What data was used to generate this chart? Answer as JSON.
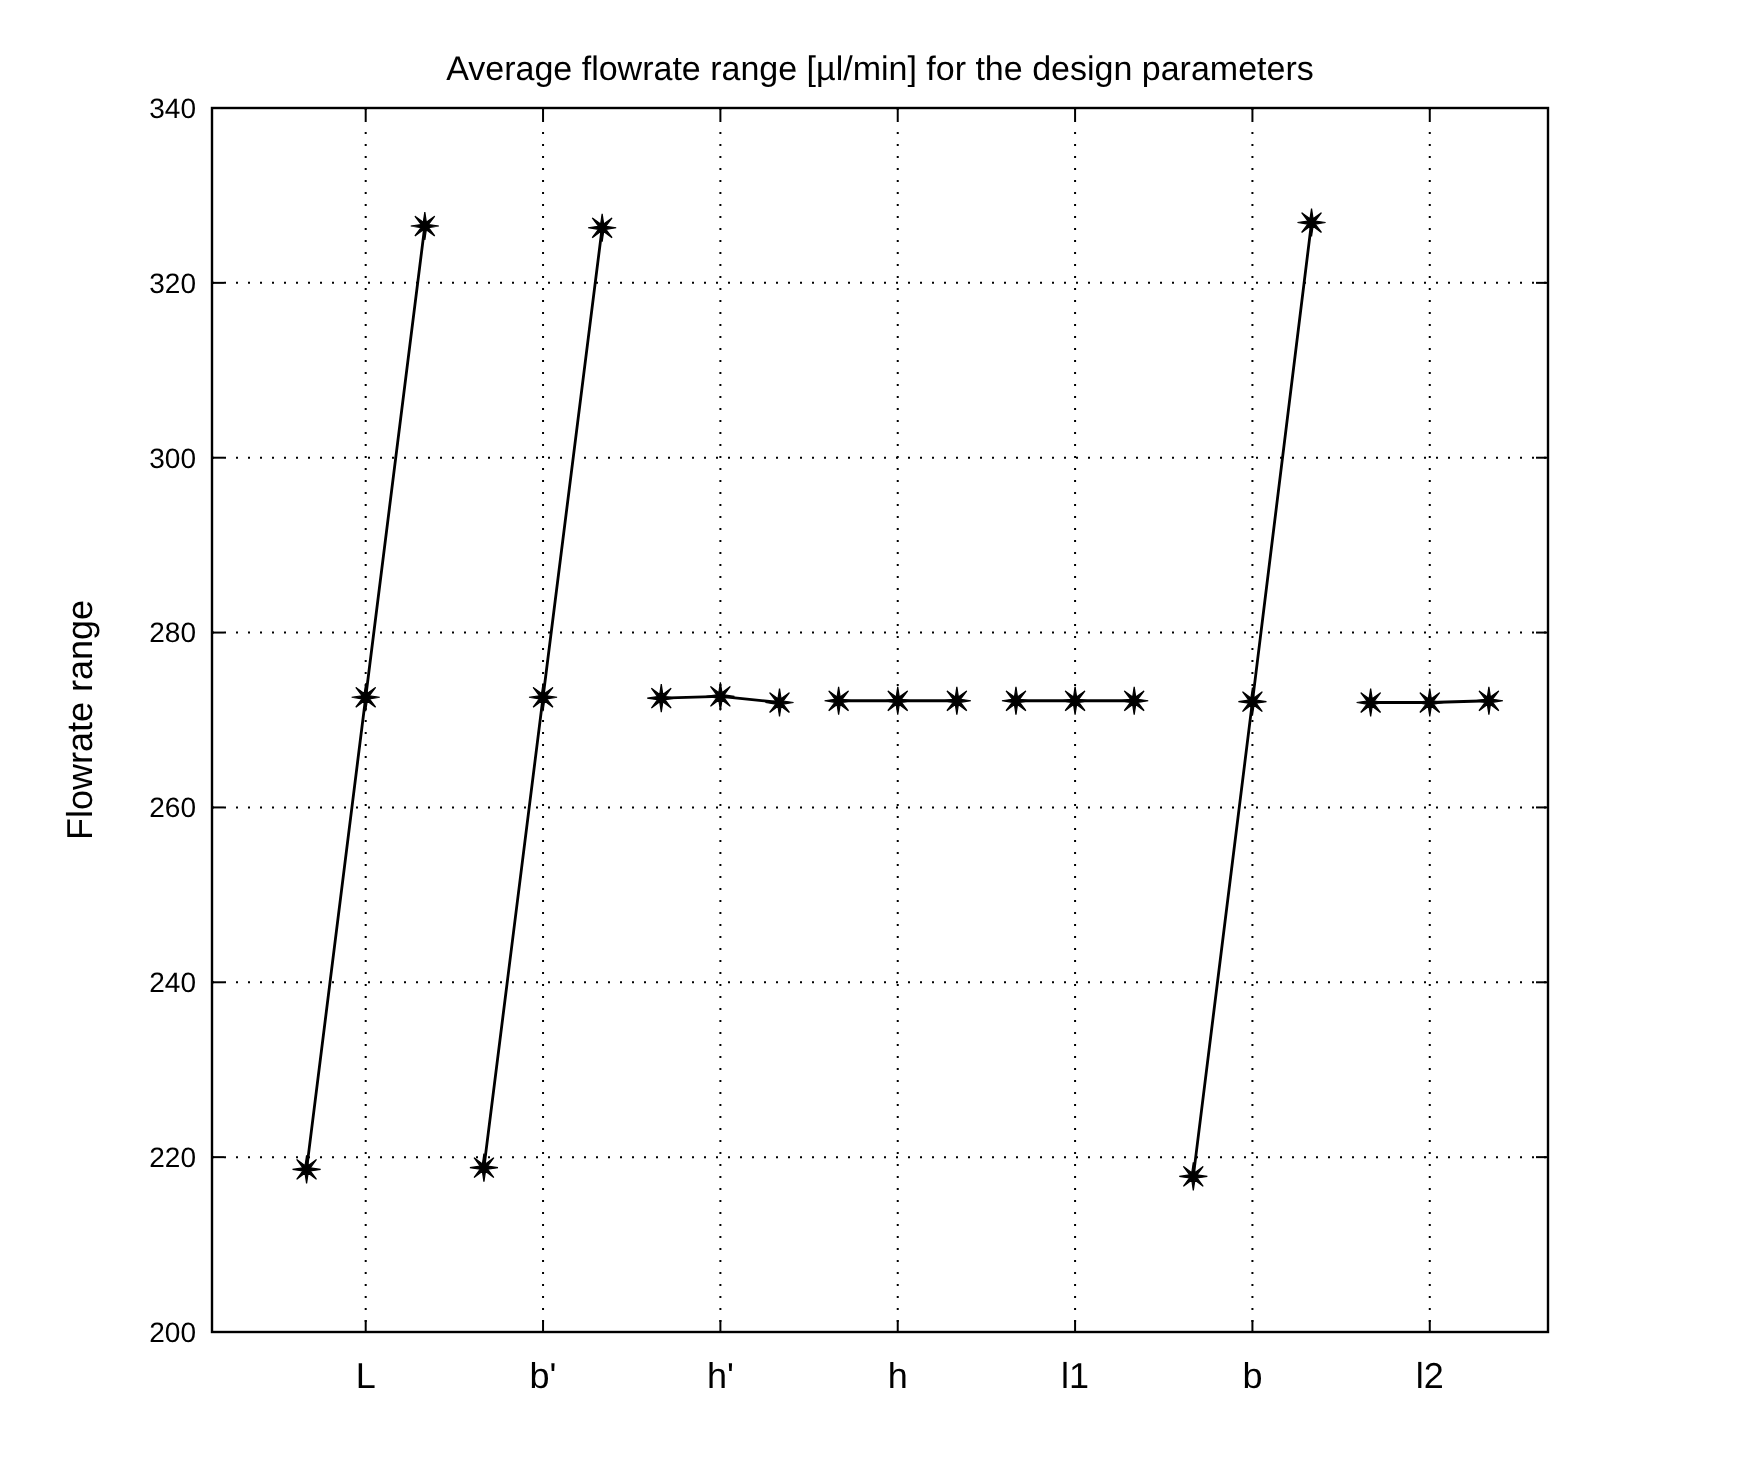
{
  "chart_data": {
    "type": "line",
    "title": "Average flowrate range [µl/min] for the design parameters",
    "ylabel": "Flowrate range",
    "categories": [
      null,
      "L",
      null,
      null,
      "b'",
      null,
      null,
      "h'",
      null,
      null,
      "h",
      null,
      null,
      "l1",
      null,
      null,
      "b",
      null,
      null,
      "l2",
      null
    ],
    "ylim": [
      200,
      340
    ],
    "yticks": [
      200,
      220,
      240,
      260,
      280,
      300,
      320,
      340
    ],
    "grid": true,
    "marker": "star",
    "line_style": "solid",
    "series": [
      {
        "color": "#000000",
        "values": [
          218.6,
          272.6,
          326.5,
          null,
          null,
          null,
          null,
          null,
          null,
          null,
          null,
          null,
          null,
          null,
          null,
          null,
          null,
          null,
          null,
          null,
          null
        ]
      },
      {
        "color": "#000000",
        "values": [
          null,
          null,
          null,
          218.8,
          272.6,
          326.3,
          null,
          null,
          null,
          null,
          null,
          null,
          null,
          null,
          null,
          null,
          null,
          null,
          null,
          null,
          null
        ]
      },
      {
        "color": "#000000",
        "values": [
          null,
          null,
          null,
          null,
          null,
          null,
          272.5,
          272.7,
          272.0,
          null,
          null,
          null,
          null,
          null,
          null,
          null,
          null,
          null,
          null,
          null,
          null
        ]
      },
      {
        "color": "#000000",
        "values": [
          null,
          null,
          null,
          null,
          null,
          null,
          null,
          null,
          null,
          272.2,
          272.2,
          272.2,
          null,
          null,
          null,
          null,
          null,
          null,
          null,
          null,
          null
        ]
      },
      {
        "color": "#000000",
        "values": [
          null,
          null,
          null,
          null,
          null,
          null,
          null,
          null,
          null,
          null,
          null,
          null,
          272.2,
          272.2,
          272.2,
          null,
          null,
          null,
          null,
          null,
          null
        ]
      },
      {
        "color": "#000000",
        "values": [
          null,
          null,
          null,
          null,
          null,
          null,
          null,
          null,
          null,
          null,
          null,
          null,
          null,
          null,
          null,
          217.8,
          272.1,
          326.9,
          null,
          null,
          null
        ]
      },
      {
        "color": "#000000",
        "values": [
          null,
          null,
          null,
          null,
          null,
          null,
          null,
          null,
          null,
          null,
          null,
          null,
          null,
          null,
          null,
          null,
          null,
          null,
          272.0,
          272.0,
          272.2
        ]
      }
    ]
  }
}
